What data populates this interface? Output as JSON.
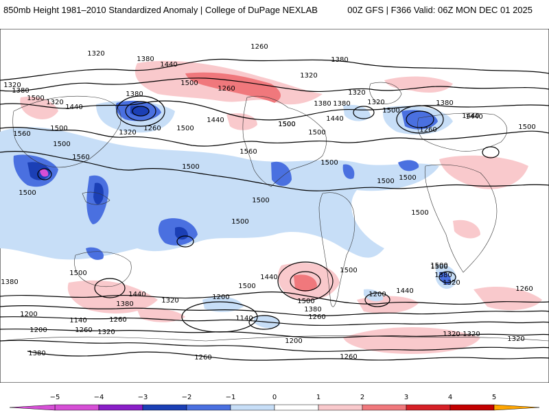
{
  "header": {
    "title": "850mb Height 1981–2010 Standardized Anomaly | College of DuPage NEXLAB",
    "run_info": "00Z GFS | F366 Valid: 06Z MON DEC 01 2025"
  },
  "map": {
    "field": "850mb geopotential height with standardized anomaly shading",
    "contour_labels": [
      {
        "id": "c1",
        "text": "1320"
      },
      {
        "id": "c2",
        "text": "1380"
      },
      {
        "id": "c3",
        "text": "1260"
      },
      {
        "id": "c4",
        "text": "1440"
      },
      {
        "id": "c5",
        "text": "1320"
      },
      {
        "id": "c6",
        "text": "1380"
      },
      {
        "id": "c7",
        "text": "1320"
      },
      {
        "id": "c8",
        "text": "1500"
      },
      {
        "id": "c9",
        "text": "1440"
      },
      {
        "id": "c10",
        "text": "1380"
      },
      {
        "id": "c11",
        "text": "1320"
      },
      {
        "id": "c12",
        "text": "1260"
      },
      {
        "id": "c13",
        "text": "1500"
      },
      {
        "id": "c14",
        "text": "1440"
      },
      {
        "id": "c15",
        "text": "1320"
      },
      {
        "id": "c16",
        "text": "1380"
      },
      {
        "id": "c17",
        "text": "1500"
      },
      {
        "id": "c18",
        "text": "1500"
      },
      {
        "id": "c19",
        "text": "1440"
      },
      {
        "id": "c20",
        "text": "1320"
      },
      {
        "id": "c21",
        "text": "1380"
      },
      {
        "id": "c22",
        "text": "1260"
      },
      {
        "id": "c23",
        "text": "1380"
      },
      {
        "id": "c24",
        "text": "1440"
      },
      {
        "id": "c25",
        "text": "1500"
      },
      {
        "id": "c26",
        "text": "1560"
      },
      {
        "id": "c27",
        "text": "1500"
      },
      {
        "id": "c28",
        "text": "1560"
      },
      {
        "id": "c29",
        "text": "1500"
      },
      {
        "id": "c30",
        "text": "1500"
      },
      {
        "id": "c31",
        "text": "1500"
      },
      {
        "id": "c32",
        "text": "1500"
      },
      {
        "id": "c33",
        "text": "1500"
      },
      {
        "id": "c34",
        "text": "1500"
      },
      {
        "id": "c35",
        "text": "1500"
      },
      {
        "id": "c36",
        "text": "1500"
      },
      {
        "id": "c37",
        "text": "1500"
      },
      {
        "id": "c38",
        "text": "1500"
      },
      {
        "id": "c39",
        "text": "1440"
      },
      {
        "id": "c40",
        "text": "1500"
      },
      {
        "id": "c41",
        "text": "1440"
      },
      {
        "id": "c42",
        "text": "1500"
      },
      {
        "id": "c43",
        "text": "1380"
      },
      {
        "id": "c44",
        "text": "1260"
      },
      {
        "id": "c45",
        "text": "1200"
      },
      {
        "id": "c46",
        "text": "1440"
      },
      {
        "id": "c47",
        "text": "1500"
      },
      {
        "id": "c48",
        "text": "1380"
      },
      {
        "id": "c49",
        "text": "1320"
      },
      {
        "id": "c50",
        "text": "1200"
      },
      {
        "id": "c51",
        "text": "1140"
      },
      {
        "id": "c52",
        "text": "1260"
      },
      {
        "id": "c53",
        "text": "1320"
      },
      {
        "id": "c54",
        "text": "1380"
      },
      {
        "id": "c55",
        "text": "1200"
      },
      {
        "id": "c56",
        "text": "1140"
      },
      {
        "id": "c57",
        "text": "1200"
      },
      {
        "id": "c58",
        "text": "1260"
      },
      {
        "id": "c59",
        "text": "1320"
      },
      {
        "id": "c60",
        "text": "1380"
      },
      {
        "id": "c61",
        "text": "1260"
      },
      {
        "id": "c62",
        "text": "1200"
      },
      {
        "id": "c63",
        "text": "1260"
      },
      {
        "id": "c64",
        "text": "1320"
      },
      {
        "id": "c65",
        "text": "1260"
      },
      {
        "id": "c66",
        "text": "1320"
      },
      {
        "id": "c67",
        "text": "1380"
      },
      {
        "id": "c68",
        "text": "1320"
      },
      {
        "id": "c69",
        "text": "1500"
      },
      {
        "id": "c70",
        "text": "1380"
      },
      {
        "id": "c71",
        "text": "1320"
      },
      {
        "id": "c72",
        "text": "1260"
      },
      {
        "id": "c73",
        "text": "1440"
      },
      {
        "id": "c74",
        "text": "1500"
      },
      {
        "id": "c75",
        "text": "1560"
      },
      {
        "id": "c76",
        "text": "1500"
      },
      {
        "id": "c77",
        "text": "1500"
      },
      {
        "id": "c78",
        "text": "1500"
      }
    ]
  },
  "colorbar": {
    "tick_labels": [
      "−5",
      "−4",
      "−3",
      "−2",
      "−1",
      "0",
      "1",
      "2",
      "3",
      "4",
      "5"
    ],
    "colors": {
      "m5": "#d64fd6",
      "m4": "#8a1ec8",
      "m3": "#1b3fb5",
      "m2": "#4a70e0",
      "m1": "#c7def7",
      "zero": "#ffffff",
      "p1": "#f9c9cc",
      "p2": "#f0787c",
      "p3": "#d62027",
      "p4": "#c20000",
      "p5": "#ffa500"
    }
  }
}
